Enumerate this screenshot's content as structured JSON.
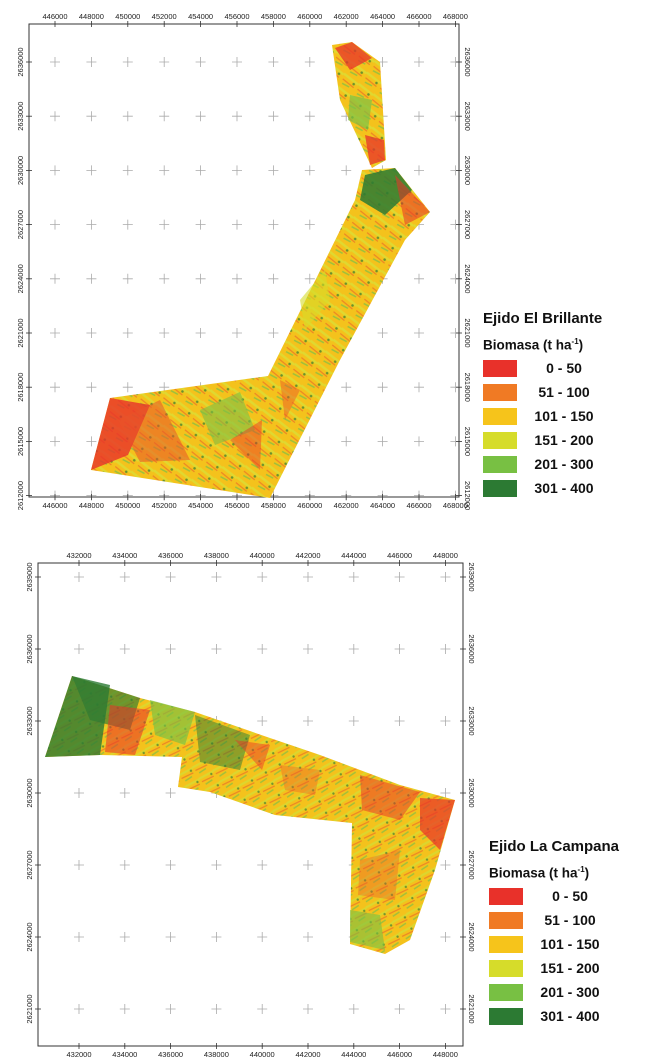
{
  "maps": [
    {
      "id": "brillante",
      "x_ticks": [
        "446000",
        "448000",
        "450000",
        "452000",
        "454000",
        "456000",
        "458000",
        "460000",
        "462000",
        "464000",
        "466000",
        "468000"
      ],
      "y_ticks": [
        "2636000",
        "2633000",
        "2630000",
        "2627000",
        "2624000",
        "2621000",
        "2618000",
        "2615000",
        "2612000"
      ],
      "legend": {
        "title": "Ejido El Brillante",
        "subtitle": "Biomasa (t ha",
        "subtitle_sup": "-1",
        "subtitle_end": ")",
        "classes": [
          {
            "label": "0 - 50",
            "color": "#e8312a"
          },
          {
            "label": "51 - 100",
            "color": "#f07a24"
          },
          {
            "label": "101 - 150",
            "color": "#f6c41b"
          },
          {
            "label": "151 - 200",
            "color": "#d6dc2a"
          },
          {
            "label": "201 - 300",
            "color": "#78c043"
          },
          {
            "label": "301 - 400",
            "color": "#2c7a33"
          }
        ]
      }
    },
    {
      "id": "campana",
      "x_ticks": [
        "432000",
        "434000",
        "436000",
        "438000",
        "440000",
        "442000",
        "444000",
        "446000",
        "448000"
      ],
      "y_ticks": [
        "2639000",
        "2636000",
        "2633000",
        "2630000",
        "2627000",
        "2624000",
        "2621000"
      ],
      "legend": {
        "title": "Ejido La Campana",
        "subtitle": "Biomasa (t ha",
        "subtitle_sup": "-1",
        "subtitle_end": ")",
        "classes": [
          {
            "label": "0 - 50",
            "color": "#e8312a"
          },
          {
            "label": "51 - 100",
            "color": "#f07a24"
          },
          {
            "label": "101 - 150",
            "color": "#f6c41b"
          },
          {
            "label": "151 - 200",
            "color": "#d6dc2a"
          },
          {
            "label": "201 - 300",
            "color": "#78c043"
          },
          {
            "label": "301 - 400",
            "color": "#2c7a33"
          }
        ]
      }
    }
  ]
}
